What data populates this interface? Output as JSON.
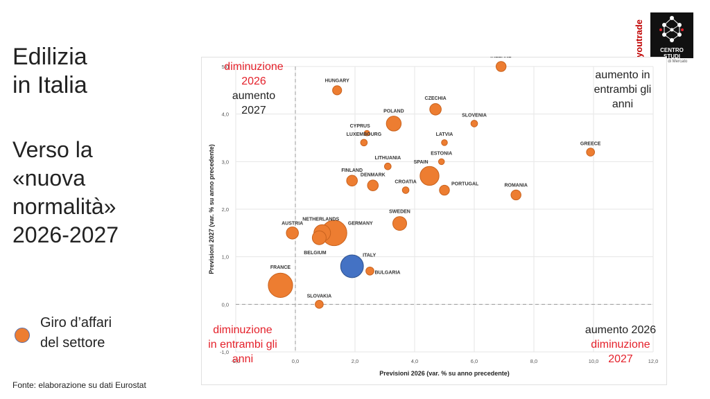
{
  "slide": {
    "title_line1": "Edilizia",
    "title_line2": "in Italia",
    "subtitle_line1": "Verso la",
    "subtitle_line2": "«nuova",
    "subtitle_line3": "normalità»",
    "subtitle_line4": "2026-2027",
    "legend_line1": "Giro d’affari",
    "legend_line2": "del settore",
    "source": "Fonte: elaborazione su dati Eurostat"
  },
  "logo": {
    "brand": "youtrade",
    "line1": "CENTRO",
    "line2": "STUDI",
    "tagline": "Ricerche di Mercato"
  },
  "quadrants": {
    "top_left": {
      "red_line1": "diminuzione",
      "red_line2": "2026",
      "black_line1": "aumento",
      "black_line2": "2027"
    },
    "top_right": {
      "line1": "aumento in",
      "line2": "entrambi gli",
      "line3": "anni"
    },
    "bottom_left": {
      "line1": "diminuzione",
      "line2": "in entrambi gli",
      "line3": "anni"
    },
    "bottom_right": {
      "black_line": "aumento 2026",
      "red_line1": "diminuzione",
      "red_line2": "2027"
    }
  },
  "colors": {
    "bubble": "#ed7d31",
    "bubble_stroke": "#c8621e",
    "italy": "#4472c4",
    "italy_stroke": "#2f528f",
    "quadrant_red": "#e4202a"
  },
  "chart_data": {
    "type": "scatter",
    "xlabel": "Previsioni 2026 (var. % su anno precedente)",
    "ylabel": "Previsioni 2027 (var. % su anno precedente)",
    "xlim": [
      -2.0,
      12.0
    ],
    "ylim": [
      -1.0,
      5.0
    ],
    "x_ticks": [
      "-2,0",
      "0,0",
      "2,0",
      "4,0",
      "6,0",
      "8,0",
      "10,0",
      "12,0"
    ],
    "y_ticks": [
      "-1,0",
      "0,0",
      "1,0",
      "2,0",
      "3,0",
      "4,0",
      "5,0"
    ],
    "grid": true,
    "reference_lines": {
      "x": 0,
      "y": 0,
      "style": "dashed"
    },
    "size_meaning": "Giro d’affari del settore",
    "points": [
      {
        "label": "IRELAND",
        "x": 6.9,
        "y": 5.0,
        "size": 2,
        "highlight": false
      },
      {
        "label": "HUNGARY",
        "x": 1.4,
        "y": 4.5,
        "size": 1.5,
        "highlight": false
      },
      {
        "label": "CZECHIA",
        "x": 4.7,
        "y": 4.1,
        "size": 3,
        "highlight": false
      },
      {
        "label": "POLAND",
        "x": 3.3,
        "y": 3.8,
        "size": 6,
        "highlight": false
      },
      {
        "label": "SLOVENIA",
        "x": 6.0,
        "y": 3.8,
        "size": 0.5,
        "highlight": false
      },
      {
        "label": "CYPRUS",
        "x": 2.4,
        "y": 3.6,
        "size": 0.2,
        "highlight": false
      },
      {
        "label": "LUXEMBOURG",
        "x": 2.3,
        "y": 3.4,
        "size": 0.5,
        "highlight": false
      },
      {
        "label": "LATVIA",
        "x": 5.0,
        "y": 3.4,
        "size": 0.3,
        "highlight": false
      },
      {
        "label": "GREECE",
        "x": 9.9,
        "y": 3.2,
        "size": 1,
        "highlight": false
      },
      {
        "label": "ESTONIA",
        "x": 4.9,
        "y": 3.0,
        "size": 0.3,
        "highlight": false
      },
      {
        "label": "LITHUANIA",
        "x": 3.1,
        "y": 2.9,
        "size": 0.5,
        "highlight": false
      },
      {
        "label": "SPAIN",
        "x": 4.5,
        "y": 2.7,
        "size": 11,
        "highlight": false
      },
      {
        "label": "FINLAND",
        "x": 1.9,
        "y": 2.6,
        "size": 2.5,
        "highlight": false
      },
      {
        "label": "DENMARK",
        "x": 2.6,
        "y": 2.5,
        "size": 2.5,
        "highlight": false
      },
      {
        "label": "CROATIA",
        "x": 3.7,
        "y": 2.4,
        "size": 0.5,
        "highlight": false
      },
      {
        "label": "PORTUGAL",
        "x": 5.0,
        "y": 2.4,
        "size": 2,
        "highlight": false
      },
      {
        "label": "ROMANIA",
        "x": 7.4,
        "y": 2.3,
        "size": 2,
        "highlight": false
      },
      {
        "label": "SWEDEN",
        "x": 3.5,
        "y": 1.7,
        "size": 5,
        "highlight": false
      },
      {
        "label": "AUSTRIA",
        "x": -0.1,
        "y": 1.5,
        "size": 3.5,
        "highlight": false
      },
      {
        "label": "NETHERLANDS",
        "x": 0.9,
        "y": 1.5,
        "size": 8,
        "highlight": false
      },
      {
        "label": "GERMANY",
        "x": 1.3,
        "y": 1.5,
        "size": 22,
        "highlight": false
      },
      {
        "label": "BELGIUM",
        "x": 0.8,
        "y": 1.4,
        "size": 5,
        "highlight": false
      },
      {
        "label": "ITALY",
        "x": 1.9,
        "y": 0.8,
        "size": 17,
        "highlight": true
      },
      {
        "label": "BULGARIA",
        "x": 2.5,
        "y": 0.7,
        "size": 1,
        "highlight": false
      },
      {
        "label": "FRANCE",
        "x": -0.5,
        "y": 0.4,
        "size": 20,
        "highlight": false
      },
      {
        "label": "SLOVAKIA",
        "x": 0.8,
        "y": 0.0,
        "size": 1,
        "highlight": false
      }
    ]
  }
}
